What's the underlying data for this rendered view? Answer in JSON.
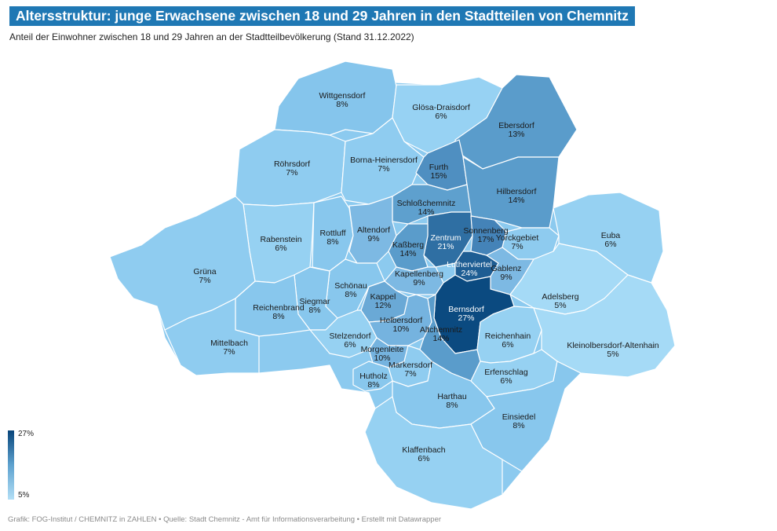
{
  "title": "Altersstruktur: junge Erwachsene zwischen 18 und 29 Jahren in den Stadtteilen von Chemnitz",
  "subtitle": "Anteil der Einwohner zwischen 18 und 29 Jahren an der Stadtteilbevölkerung (Stand 31.12.2022)",
  "legend": {
    "max_label": "27%",
    "min_label": "5%",
    "color_high": "#08457a",
    "color_low": "#b3dff6"
  },
  "footer": "Grafik: FOG-Institut / CHEMNITZ in ZAHLEN • Quelle: Stadt Chemnitz - Amt für Informationsverarbeitung • Erstellt mit Datawrapper",
  "districts": [
    {
      "name": "Wittgensdorf",
      "value": "8%"
    },
    {
      "name": "Glösa-Draisdorf",
      "value": "6%"
    },
    {
      "name": "Ebersdorf",
      "value": "13%"
    },
    {
      "name": "Röhrsdorf",
      "value": "7%"
    },
    {
      "name": "Borna-Heinersdorf",
      "value": "7%"
    },
    {
      "name": "Furth",
      "value": "15%"
    },
    {
      "name": "Hilbersdorf",
      "value": "14%"
    },
    {
      "name": "Schloßchemnitz",
      "value": "14%"
    },
    {
      "name": "Rabenstein",
      "value": "6%"
    },
    {
      "name": "Rottluff",
      "value": "8%"
    },
    {
      "name": "Altendorf",
      "value": "9%"
    },
    {
      "name": "Zentrum",
      "value": "21%"
    },
    {
      "name": "Sonnenberg",
      "value": "17%"
    },
    {
      "name": "Yorckgebiet",
      "value": "7%"
    },
    {
      "name": "Euba",
      "value": "6%"
    },
    {
      "name": "Kaßberg",
      "value": "14%"
    },
    {
      "name": "Lutherviertel",
      "value": "24%"
    },
    {
      "name": "Gablenz",
      "value": "9%"
    },
    {
      "name": "Grüna",
      "value": "7%"
    },
    {
      "name": "Kapellenberg",
      "value": "9%"
    },
    {
      "name": "Schönau",
      "value": "8%"
    },
    {
      "name": "Kappel",
      "value": "12%"
    },
    {
      "name": "Adelsberg",
      "value": "5%"
    },
    {
      "name": "Siegmar",
      "value": "8%"
    },
    {
      "name": "Reichenbrand",
      "value": "8%"
    },
    {
      "name": "Bernsdorf",
      "value": "27%"
    },
    {
      "name": "Helbersdorf",
      "value": "10%"
    },
    {
      "name": "Altchemnitz",
      "value": "14%"
    },
    {
      "name": "Reichenhain",
      "value": "6%"
    },
    {
      "name": "Stelzendorf",
      "value": "6%"
    },
    {
      "name": "Kleinolbersdorf-Altenhain",
      "value": "5%"
    },
    {
      "name": "Mittelbach",
      "value": "7%"
    },
    {
      "name": "Morgenleite",
      "value": "10%"
    },
    {
      "name": "Markersdorf",
      "value": "7%"
    },
    {
      "name": "Erfenschlag",
      "value": "6%"
    },
    {
      "name": "Hutholz",
      "value": "8%"
    },
    {
      "name": "Harthau",
      "value": "8%"
    },
    {
      "name": "Einsiedel",
      "value": "8%"
    },
    {
      "name": "Klaffenbach",
      "value": "6%"
    }
  ]
}
